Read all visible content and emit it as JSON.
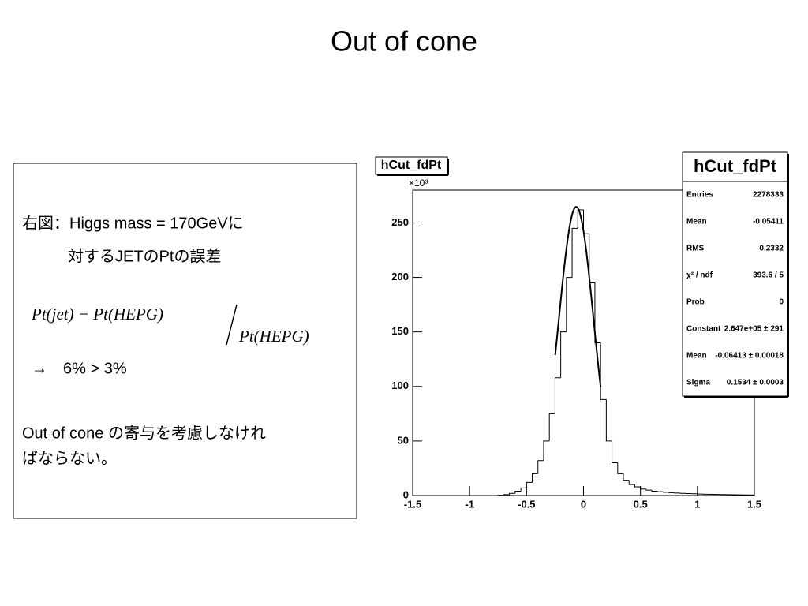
{
  "slide": {
    "title": "Out of cone",
    "text": [
      "右図：Higgs mass = 170GeVに",
      "対するJETのPtの誤差"
    ],
    "formula": {
      "numerator": "Pt(jet) − Pt(HEPG)",
      "denominator": "Pt(HEPG)"
    },
    "result": "→　6% > 3%",
    "conclusion": [
      "Out of cone の寄与を考慮しなけれ",
      "ばならない。"
    ]
  },
  "chart_data": {
    "type": "histogram",
    "title": "hCut_fdPt",
    "y_multiplier": "×10³",
    "color": "#000000",
    "bins": [
      -1.5,
      -1.45,
      -1.4,
      -1.35,
      -1.3,
      -1.25,
      -1.2,
      -1.15,
      -1.1,
      -1.05,
      -1,
      -0.95,
      -0.9,
      -0.85,
      -0.8,
      -0.75,
      -0.7,
      -0.65,
      -0.6,
      -0.55,
      -0.5,
      -0.45,
      -0.4,
      -0.35,
      -0.3,
      -0.25,
      -0.2,
      -0.15,
      -0.1,
      -0.05,
      0,
      0.05,
      0.1,
      0.15,
      0.2,
      0.25,
      0.3,
      0.35,
      0.4,
      0.45,
      0.5,
      0.55,
      0.6,
      0.65,
      0.7,
      0.75,
      0.8,
      0.85,
      0.9,
      0.95,
      1,
      1.05,
      1.1,
      1.15,
      1.2,
      1.25,
      1.3,
      1.35,
      1.4,
      1.45,
      1.5
    ],
    "counts": [
      0,
      0,
      0,
      0,
      0,
      0,
      0,
      0,
      0,
      0,
      0,
      0,
      0,
      0,
      0,
      0.3,
      0.8,
      2,
      4,
      7,
      12,
      20,
      32,
      50,
      75,
      108,
      150,
      200,
      245,
      262,
      240,
      195,
      140,
      88,
      50,
      30,
      20,
      14,
      10,
      8,
      6,
      5,
      4,
      3.5,
      3,
      2.6,
      2.3,
      2,
      1.8,
      1.6,
      1.4,
      1.2,
      1.1,
      1,
      0.9,
      0.8,
      0.7,
      0.6,
      0.5,
      0.5
    ],
    "fit": {
      "constant": 264.7,
      "mean": -0.06413,
      "sigma": 0.1534
    },
    "xlim": [
      -1.5,
      1.5
    ],
    "xticks": [
      -1.5,
      -1,
      -0.5,
      0,
      0.5,
      1,
      1.5
    ],
    "ylim": [
      0,
      280
    ],
    "yticks": [
      0,
      50,
      100,
      150,
      200,
      250
    ],
    "stats": {
      "title": "hCut_fdPt",
      "rows": [
        [
          "Entries",
          "2278333"
        ],
        [
          "Mean",
          "-0.05411"
        ],
        [
          "RMS",
          "0.2332"
        ],
        [
          "χ² / ndf",
          "393.6 / 5"
        ],
        [
          "Prob",
          "0"
        ],
        [
          "Constant",
          "2.647e+05 ± 291"
        ],
        [
          "Mean",
          "-0.06413 ± 0.00018"
        ],
        [
          "Sigma",
          "0.1534 ± 0.0003"
        ]
      ]
    }
  }
}
